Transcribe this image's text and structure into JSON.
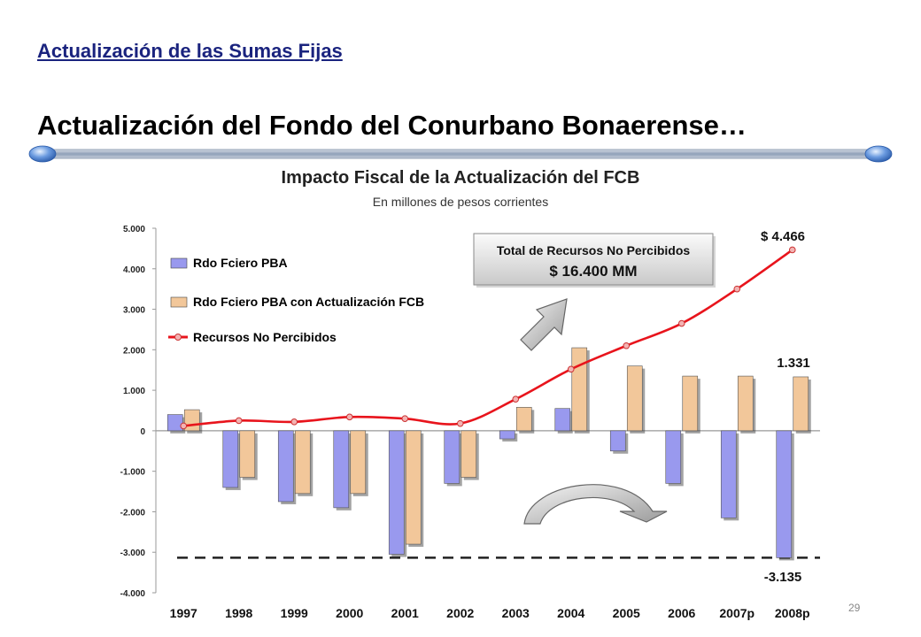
{
  "header": {
    "section_link": "Actualización de las Sumas Fijas",
    "title": "Actualización del Fondo del Conurbano Bonaerense…"
  },
  "callout": {
    "line1": "Total de Recursos No Percibidos",
    "line2": "$ 16.400 MM"
  },
  "page_number": "29",
  "colors": {
    "series1": "#9999ee",
    "series2": "#f2c79a",
    "line": "#e8141c"
  },
  "chart_data": {
    "type": "bar",
    "title": "Impacto Fiscal de la Actualización del FCB",
    "subtitle": "En millones de pesos corrientes",
    "categories": [
      "1997",
      "1998",
      "1999",
      "2000",
      "2001",
      "2002",
      "2003",
      "2004",
      "2005",
      "2006",
      "2007p",
      "2008p"
    ],
    "yticks": [
      "5.000",
      "4.000",
      "3.000",
      "2.000",
      "1.000",
      "0",
      "-1.000",
      "-2.000",
      "-3.000",
      "-4.000"
    ],
    "ylim": [
      -4000,
      5000
    ],
    "legend_position": "top-left",
    "series": [
      {
        "name": "Rdo Fciero PBA",
        "type": "bar",
        "values": [
          400,
          -1400,
          -1750,
          -1900,
          -3050,
          -1300,
          -200,
          550,
          -500,
          -1300,
          -2150,
          -3135
        ]
      },
      {
        "name": "Rdo Fciero PBA con Actualización FCB",
        "type": "bar",
        "values": [
          520,
          -1150,
          -1550,
          -1550,
          -2800,
          -1150,
          580,
          2050,
          1600,
          1350,
          1350,
          1331
        ]
      },
      {
        "name": "Recursos No Percibidos",
        "type": "line",
        "values": [
          120,
          250,
          220,
          340,
          300,
          180,
          780,
          1520,
          2100,
          2650,
          3500,
          4466
        ]
      }
    ],
    "annotations": [
      "$ 4.466",
      "1.331",
      "-3.135"
    ],
    "reference_line_value": -3135
  }
}
